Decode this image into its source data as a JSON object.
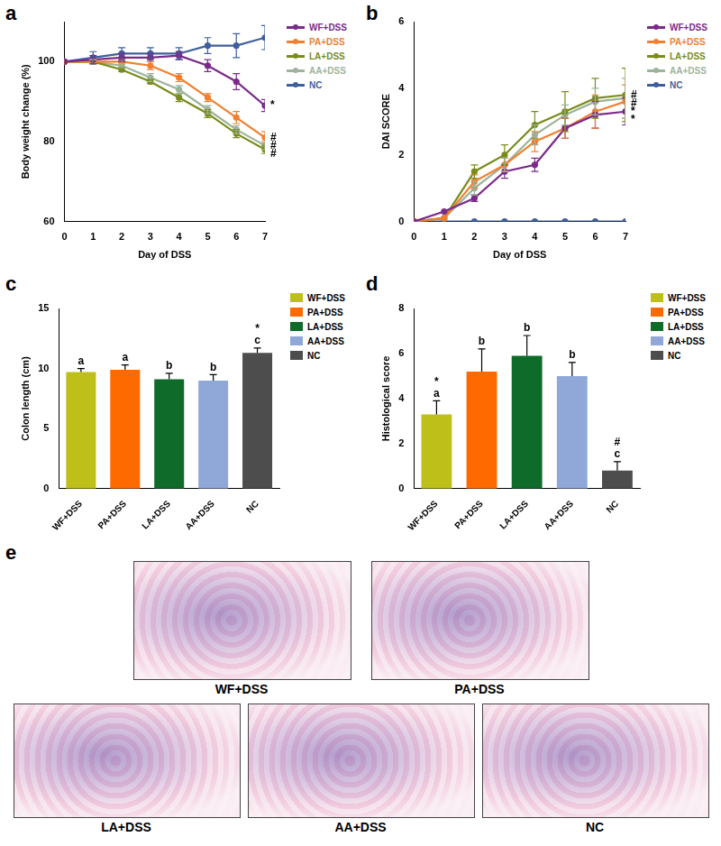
{
  "chart_data": [
    {
      "panel_label": "a",
      "type": "line",
      "y_label": "Body weight change (%)",
      "x_label": "Day of DSS",
      "x": [
        0,
        1,
        2,
        3,
        4,
        5,
        6,
        7
      ],
      "xlim": [
        0,
        7
      ],
      "xticks": [
        0,
        1,
        2,
        3,
        4,
        5,
        6,
        7
      ],
      "ylim": [
        60,
        110
      ],
      "yticks": [
        60,
        80,
        100
      ],
      "grid": false,
      "legend": "right",
      "marker": "circle",
      "series": [
        {
          "name": "WF+DSS",
          "color": "#7b2a8a",
          "values": [
            100,
            100.5,
            101,
            101,
            101.5,
            99,
            95,
            89
          ],
          "errors": [
            0,
            1,
            1,
            1,
            1,
            1.5,
            2,
            1.5
          ],
          "annotation": "*"
        },
        {
          "name": "PA+DSS",
          "color": "#f08030",
          "values": [
            100,
            100,
            100,
            99,
            96,
            91,
            86,
            81
          ],
          "errors": [
            0,
            0.5,
            0.5,
            1,
            1,
            1,
            1.5,
            1.5
          ],
          "annotation": "#"
        },
        {
          "name": "LA+DSS",
          "color": "#7a8c1c",
          "values": [
            100,
            100,
            98,
            95,
            91,
            87,
            82,
            78
          ],
          "errors": [
            0,
            0.5,
            0.5,
            0.5,
            1,
            1,
            1,
            1
          ],
          "annotation": "#"
        },
        {
          "name": "AA+DSS",
          "color": "#9db39a",
          "values": [
            100,
            100,
            99,
            96,
            93,
            88,
            83,
            79
          ],
          "errors": [
            0,
            0.5,
            0.5,
            1,
            1,
            1,
            1,
            1
          ],
          "annotation": "#"
        },
        {
          "name": "NC",
          "color": "#3f5f9c",
          "values": [
            100,
            101,
            102,
            102,
            102,
            104,
            104,
            106
          ],
          "errors": [
            0,
            1.5,
            1.5,
            1.5,
            1.5,
            2,
            3,
            3
          ]
        }
      ]
    },
    {
      "panel_label": "b",
      "type": "line",
      "y_label": "DAI SCORE",
      "x_label": "Day of DSS",
      "x": [
        0,
        1,
        2,
        3,
        4,
        5,
        6,
        7
      ],
      "xlim": [
        0,
        7
      ],
      "xticks": [
        0,
        1,
        2,
        3,
        4,
        5,
        6,
        7
      ],
      "ylim": [
        0,
        6
      ],
      "yticks": [
        0,
        2,
        4,
        6
      ],
      "grid": false,
      "legend": "right",
      "marker": "circle",
      "series": [
        {
          "name": "WF+DSS",
          "color": "#7b2a8a",
          "values": [
            0,
            0.3,
            0.7,
            1.5,
            1.7,
            2.8,
            3.2,
            3.3
          ],
          "errors": [
            0,
            0,
            0.1,
            0.2,
            0.2,
            0.3,
            0.4,
            0.4
          ],
          "annotation": "*"
        },
        {
          "name": "PA+DSS",
          "color": "#f08030",
          "values": [
            0,
            0.1,
            1.2,
            1.7,
            2.4,
            2.8,
            3.3,
            3.6
          ],
          "errors": [
            0,
            0,
            0.2,
            0.2,
            0.3,
            0.3,
            0.5,
            0.5
          ],
          "annotation": "*"
        },
        {
          "name": "LA+DSS",
          "color": "#7a8c1c",
          "values": [
            0,
            0.1,
            1.5,
            2.0,
            2.9,
            3.3,
            3.7,
            3.8
          ],
          "errors": [
            0,
            0,
            0.2,
            0.3,
            0.4,
            0.6,
            0.6,
            0.8
          ],
          "annotation": "#"
        },
        {
          "name": "AA+DSS",
          "color": "#9db39a",
          "values": [
            0,
            0.1,
            1.0,
            1.7,
            2.6,
            3.2,
            3.6,
            3.7
          ],
          "errors": [
            0,
            0,
            0.2,
            0.2,
            0.3,
            0.3,
            0.4,
            0.6
          ],
          "annotation": "#"
        },
        {
          "name": "NC",
          "color": "#3f5f9c",
          "values": [
            0,
            0,
            0,
            0,
            0,
            0,
            0,
            0
          ],
          "errors": [
            0,
            0,
            0,
            0,
            0,
            0,
            0,
            0
          ]
        }
      ]
    },
    {
      "panel_label": "c",
      "type": "bar",
      "y_label": "Colon length (cm)",
      "categories": [
        "WF+DSS",
        "PA+DSS",
        "LA+DSS",
        "AA+DSS",
        "NC"
      ],
      "values": [
        9.7,
        9.9,
        9.1,
        9.0,
        11.3
      ],
      "errors": [
        0.3,
        0.4,
        0.5,
        0.5,
        0.4
      ],
      "colors": [
        "#bfbf1a",
        "#ff6a00",
        "#0f6b2a",
        "#8fa8d8",
        "#4d4d4d"
      ],
      "letters": [
        "a",
        "a",
        "b",
        "b",
        "c"
      ],
      "significance": [
        null,
        null,
        null,
        null,
        "*"
      ],
      "ylim": [
        0,
        15
      ],
      "yticks": [
        0,
        5,
        10,
        15
      ],
      "grid": false,
      "legend": "right"
    },
    {
      "panel_label": "d",
      "type": "bar",
      "y_label": "Histological score",
      "categories": [
        "WF+DSS",
        "PA+DSS",
        "LA+DSS",
        "AA+DSS",
        "NC"
      ],
      "values": [
        3.3,
        5.2,
        5.9,
        5.0,
        0.8
      ],
      "errors": [
        0.6,
        1.0,
        0.9,
        0.6,
        0.4
      ],
      "colors": [
        "#bfbf1a",
        "#ff6a00",
        "#0f6b2a",
        "#8fa8d8",
        "#4d4d4d"
      ],
      "letters": [
        "a",
        "b",
        "b",
        "b",
        "c"
      ],
      "significance": [
        "*",
        null,
        null,
        null,
        "#"
      ],
      "ylim": [
        0,
        8
      ],
      "yticks": [
        0,
        2,
        4,
        6,
        8
      ],
      "grid": false,
      "legend": "right"
    }
  ],
  "images": {
    "panel_label": "e",
    "labels": [
      "WF+DSS",
      "PA+DSS",
      "LA+DSS",
      "AA+DSS",
      "NC"
    ]
  }
}
